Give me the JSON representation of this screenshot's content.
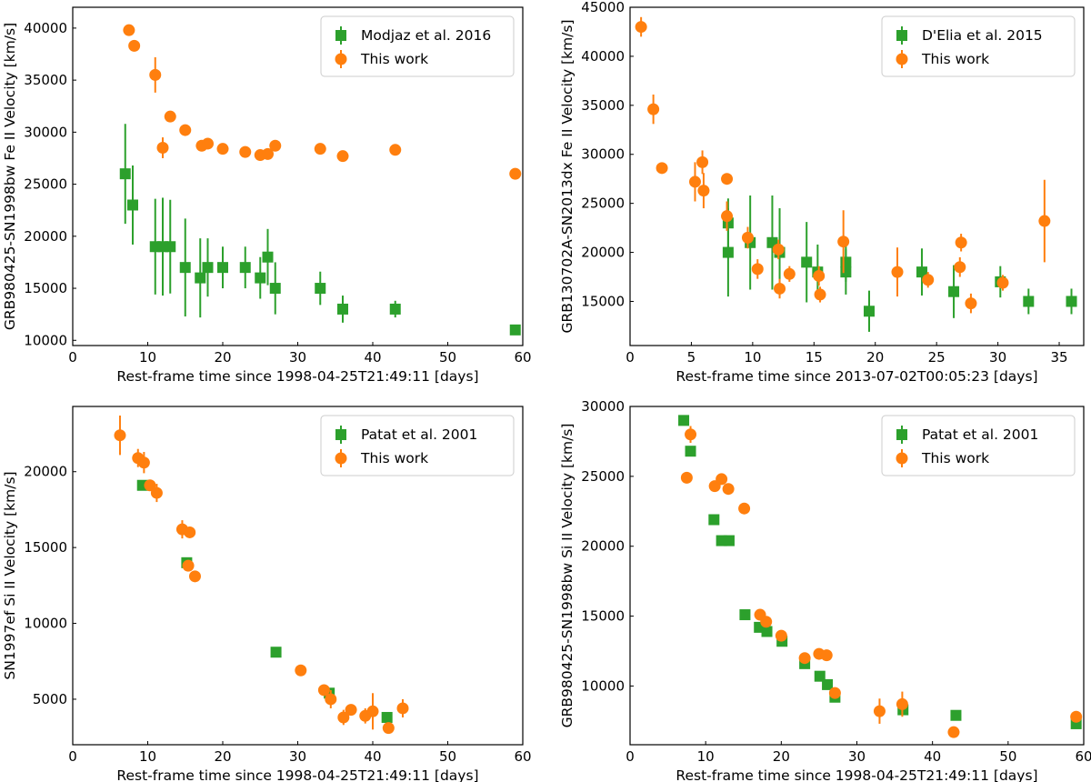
{
  "colors": {
    "literature": "#2ca02c",
    "this_work": "#ff7f0e",
    "axes": "#000000"
  },
  "chart_data": [
    {
      "type": "scatter",
      "id": "top-left",
      "xlabel": "Rest-frame time since 1998-04-25T21:49:11 [days]",
      "ylabel": "GRB980425-SN1998bw Fe II Velocity [km/s]",
      "xlim": [
        0,
        60
      ],
      "ylim": [
        9500,
        42000
      ],
      "xticks": [
        0,
        10,
        20,
        30,
        40,
        50,
        60
      ],
      "yticks": [
        10000,
        15000,
        20000,
        25000,
        30000,
        35000,
        40000
      ],
      "legend": "top-right",
      "series": [
        {
          "name": "Modjaz et al. 2016",
          "marker": "square",
          "points": [
            {
              "x": 7,
              "y": 26000,
              "err": 4800
            },
            {
              "x": 8,
              "y": 23000,
              "err": 3800
            },
            {
              "x": 11,
              "y": 19000,
              "err": 4600
            },
            {
              "x": 12,
              "y": 19000,
              "err": 4700
            },
            {
              "x": 13,
              "y": 19000,
              "err": 4500
            },
            {
              "x": 15,
              "y": 17000,
              "err": 4700
            },
            {
              "x": 17,
              "y": 16000,
              "err": 3800
            },
            {
              "x": 18,
              "y": 17000,
              "err": 2800
            },
            {
              "x": 20,
              "y": 17000,
              "err": 2000
            },
            {
              "x": 23,
              "y": 17000,
              "err": 2000
            },
            {
              "x": 25,
              "y": 16000,
              "err": 2000
            },
            {
              "x": 26,
              "y": 18000,
              "err": 2700
            },
            {
              "x": 27,
              "y": 15000,
              "err": 2500
            },
            {
              "x": 33,
              "y": 15000,
              "err": 1600
            },
            {
              "x": 36,
              "y": 13000,
              "err": 1300
            },
            {
              "x": 43,
              "y": 13000,
              "err": 800
            },
            {
              "x": 59,
              "y": 11000,
              "err": 0
            }
          ]
        },
        {
          "name": "This work",
          "marker": "circle",
          "points": [
            {
              "x": 7.5,
              "y": 39800,
              "err": 0
            },
            {
              "x": 8.2,
              "y": 38300,
              "err": 0
            },
            {
              "x": 11,
              "y": 35500,
              "err": 1700
            },
            {
              "x": 12,
              "y": 28500,
              "err": 1000
            },
            {
              "x": 13,
              "y": 31500,
              "err": 0
            },
            {
              "x": 15,
              "y": 30200,
              "err": 0
            },
            {
              "x": 17.2,
              "y": 28700,
              "err": 0
            },
            {
              "x": 18,
              "y": 28900,
              "err": 0
            },
            {
              "x": 20,
              "y": 28400,
              "err": 0
            },
            {
              "x": 23,
              "y": 28100,
              "err": 0
            },
            {
              "x": 25,
              "y": 27800,
              "err": 0
            },
            {
              "x": 26,
              "y": 27900,
              "err": 0
            },
            {
              "x": 27,
              "y": 28700,
              "err": 0
            },
            {
              "x": 33,
              "y": 28400,
              "err": 0
            },
            {
              "x": 36,
              "y": 27700,
              "err": 0
            },
            {
              "x": 43,
              "y": 28300,
              "err": 0
            },
            {
              "x": 59,
              "y": 26000,
              "err": 0
            }
          ]
        }
      ]
    },
    {
      "type": "scatter",
      "id": "top-right",
      "xlabel": "Rest-frame time since 2013-07-02T00:05:23 [days]",
      "ylabel": "GRB130702A-SN2013dx Fe II Velocity [km/s]",
      "xlim": [
        0,
        37
      ],
      "ylim": [
        10500,
        45000
      ],
      "xticks": [
        0,
        5,
        10,
        15,
        20,
        25,
        30,
        35
      ],
      "yticks": [
        15000,
        20000,
        25000,
        30000,
        35000,
        40000,
        45000
      ],
      "legend": "top-right",
      "series": [
        {
          "name": "D'Elia et al. 2015",
          "marker": "square",
          "points": [
            {
              "x": 8,
              "y": 23000,
              "err": 2500
            },
            {
              "x": 8,
              "y": 20000,
              "err": 4500
            },
            {
              "x": 9.8,
              "y": 21000,
              "err": 4800
            },
            {
              "x": 11.6,
              "y": 21000,
              "err": 4800
            },
            {
              "x": 12.2,
              "y": 20000,
              "err": 4500
            },
            {
              "x": 14.4,
              "y": 19000,
              "err": 4100
            },
            {
              "x": 15.3,
              "y": 18000,
              "err": 2800
            },
            {
              "x": 17.6,
              "y": 19000,
              "err": 2000
            },
            {
              "x": 17.6,
              "y": 18000,
              "err": 2300
            },
            {
              "x": 19.5,
              "y": 14000,
              "err": 2100
            },
            {
              "x": 23.8,
              "y": 18000,
              "err": 2400
            },
            {
              "x": 26.4,
              "y": 16000,
              "err": 2700
            },
            {
              "x": 30.2,
              "y": 17000,
              "err": 1600
            },
            {
              "x": 32.5,
              "y": 15000,
              "err": 1300
            },
            {
              "x": 36,
              "y": 15000,
              "err": 1300
            }
          ]
        },
        {
          "name": "This work",
          "marker": "circle",
          "points": [
            {
              "x": 0.9,
              "y": 43000,
              "err": 1000
            },
            {
              "x": 1.9,
              "y": 34600,
              "err": 1500
            },
            {
              "x": 2.6,
              "y": 28600,
              "err": 0
            },
            {
              "x": 5.3,
              "y": 27200,
              "err": 2000
            },
            {
              "x": 5.9,
              "y": 29200,
              "err": 1200
            },
            {
              "x": 6,
              "y": 26300,
              "err": 1800
            },
            {
              "x": 7.9,
              "y": 27500,
              "err": 0
            },
            {
              "x": 7.9,
              "y": 23700,
              "err": 1500
            },
            {
              "x": 9.6,
              "y": 21500,
              "err": 1100
            },
            {
              "x": 10.4,
              "y": 18300,
              "err": 1000
            },
            {
              "x": 12.1,
              "y": 20300,
              "err": 1000
            },
            {
              "x": 12.2,
              "y": 16300,
              "err": 1000
            },
            {
              "x": 13,
              "y": 17800,
              "err": 800
            },
            {
              "x": 15.4,
              "y": 17600,
              "err": 1000
            },
            {
              "x": 15.5,
              "y": 15700,
              "err": 800
            },
            {
              "x": 17.4,
              "y": 21100,
              "err": 3200
            },
            {
              "x": 21.8,
              "y": 18000,
              "err": 2500
            },
            {
              "x": 24.3,
              "y": 17200,
              "err": 800
            },
            {
              "x": 26.9,
              "y": 18500,
              "err": 1000
            },
            {
              "x": 27,
              "y": 21000,
              "err": 900
            },
            {
              "x": 27.8,
              "y": 14800,
              "err": 1000
            },
            {
              "x": 30.4,
              "y": 16900,
              "err": 800
            },
            {
              "x": 33.8,
              "y": 23200,
              "err": 4200
            }
          ]
        }
      ]
    },
    {
      "type": "scatter",
      "id": "bottom-left",
      "xlabel": "Rest-frame time since 1998-04-25T21:49:11 [days]",
      "ylabel": "SN1997ef Si II Velocity [km/s]",
      "xlim": [
        0,
        60
      ],
      "ylim": [
        2000,
        24300
      ],
      "xticks": [
        0,
        10,
        20,
        30,
        40,
        50,
        60
      ],
      "yticks": [
        5000,
        10000,
        15000,
        20000
      ],
      "legend": "top-right",
      "series": [
        {
          "name": "Patat et al. 2001",
          "marker": "square",
          "points": [
            {
              "x": 9.3,
              "y": 19100,
              "err": 0
            },
            {
              "x": 15.2,
              "y": 14000,
              "err": 0
            },
            {
              "x": 27.1,
              "y": 8100,
              "err": 0
            },
            {
              "x": 34.2,
              "y": 5400,
              "err": 0
            },
            {
              "x": 41.9,
              "y": 3800,
              "err": 0
            }
          ]
        },
        {
          "name": "This work",
          "marker": "circle",
          "points": [
            {
              "x": 6.3,
              "y": 22400,
              "err": 1300
            },
            {
              "x": 8.7,
              "y": 20900,
              "err": 600
            },
            {
              "x": 9.5,
              "y": 20600,
              "err": 700
            },
            {
              "x": 10.3,
              "y": 19100,
              "err": 0
            },
            {
              "x": 11.2,
              "y": 18600,
              "err": 600
            },
            {
              "x": 14.6,
              "y": 16200,
              "err": 600
            },
            {
              "x": 15.6,
              "y": 16000,
              "err": 0
            },
            {
              "x": 15.4,
              "y": 13800,
              "err": 0
            },
            {
              "x": 16.3,
              "y": 13100,
              "err": 0
            },
            {
              "x": 30.4,
              "y": 6900,
              "err": 0
            },
            {
              "x": 33.5,
              "y": 5600,
              "err": 0
            },
            {
              "x": 34.4,
              "y": 5000,
              "err": 600
            },
            {
              "x": 36.1,
              "y": 3800,
              "err": 500
            },
            {
              "x": 37.1,
              "y": 4300,
              "err": 0
            },
            {
              "x": 39,
              "y": 3900,
              "err": 500
            },
            {
              "x": 40,
              "y": 4200,
              "err": 1200
            },
            {
              "x": 42.1,
              "y": 3100,
              "err": 0
            },
            {
              "x": 44,
              "y": 4400,
              "err": 600
            }
          ]
        }
      ]
    },
    {
      "type": "scatter",
      "id": "bottom-right",
      "xlabel": "Rest-frame time since 1998-04-25T21:49:11 [days]",
      "ylabel": "GRB980425-SN1998bw Si II Velocity [km/s]",
      "xlim": [
        0,
        60
      ],
      "ylim": [
        5800,
        30000
      ],
      "xticks": [
        0,
        10,
        20,
        30,
        40,
        50,
        60
      ],
      "yticks": [
        10000,
        15000,
        20000,
        25000,
        30000
      ],
      "legend": "top-right",
      "series": [
        {
          "name": "Patat et al. 2001",
          "marker": "square",
          "points": [
            {
              "x": 7.1,
              "y": 29000,
              "err": 0
            },
            {
              "x": 8,
              "y": 26800,
              "err": 0
            },
            {
              "x": 11.1,
              "y": 21900,
              "err": 0
            },
            {
              "x": 12.1,
              "y": 20400,
              "err": 0
            },
            {
              "x": 13.1,
              "y": 20400,
              "err": 0
            },
            {
              "x": 15.2,
              "y": 15100,
              "err": 0
            },
            {
              "x": 17.1,
              "y": 14200,
              "err": 0
            },
            {
              "x": 18.1,
              "y": 13900,
              "err": 0
            },
            {
              "x": 20.1,
              "y": 13200,
              "err": 0
            },
            {
              "x": 23.1,
              "y": 11600,
              "err": 0
            },
            {
              "x": 25.1,
              "y": 10700,
              "err": 0
            },
            {
              "x": 26.1,
              "y": 10100,
              "err": 0
            },
            {
              "x": 27.1,
              "y": 9200,
              "err": 0
            },
            {
              "x": 36.1,
              "y": 8300,
              "err": 0
            },
            {
              "x": 43.1,
              "y": 7900,
              "err": 0
            },
            {
              "x": 59,
              "y": 7300,
              "err": 0
            }
          ]
        },
        {
          "name": "This work",
          "marker": "circle",
          "points": [
            {
              "x": 7.5,
              "y": 24900,
              "err": 0
            },
            {
              "x": 8,
              "y": 28000,
              "err": 600
            },
            {
              "x": 11.2,
              "y": 24300,
              "err": 0
            },
            {
              "x": 12.1,
              "y": 24800,
              "err": 0
            },
            {
              "x": 13,
              "y": 24100,
              "err": 0
            },
            {
              "x": 15.1,
              "y": 22700,
              "err": 400
            },
            {
              "x": 17.2,
              "y": 15100,
              "err": 0
            },
            {
              "x": 18,
              "y": 14600,
              "err": 0
            },
            {
              "x": 20,
              "y": 13600,
              "err": 0
            },
            {
              "x": 23.1,
              "y": 12000,
              "err": 0
            },
            {
              "x": 25,
              "y": 12300,
              "err": 0
            },
            {
              "x": 26,
              "y": 12200,
              "err": 0
            },
            {
              "x": 27.1,
              "y": 9500,
              "err": 0
            },
            {
              "x": 33,
              "y": 8200,
              "err": 900
            },
            {
              "x": 36,
              "y": 8700,
              "err": 900
            },
            {
              "x": 42.8,
              "y": 6700,
              "err": 0
            },
            {
              "x": 59,
              "y": 7800,
              "err": 0
            }
          ]
        }
      ]
    }
  ]
}
